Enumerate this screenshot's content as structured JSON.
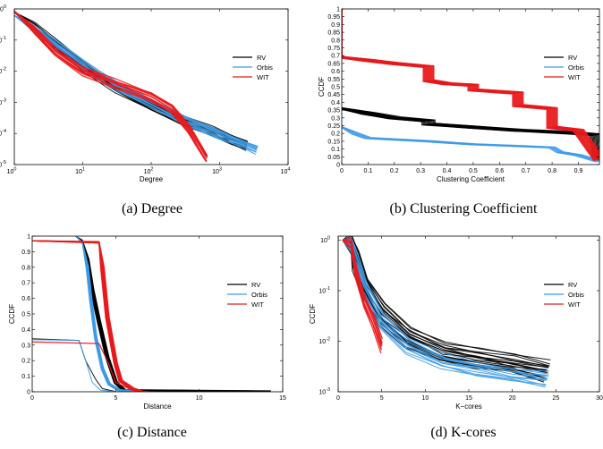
{
  "chart_data": [
    {
      "id": "a",
      "type": "line",
      "caption": "(a)  Degree",
      "xlabel": "Degree",
      "ylabel": "CCDF",
      "xscale": "log",
      "yscale": "log",
      "xlim": [
        1,
        10000
      ],
      "ylim": [
        1e-05,
        1
      ],
      "xticks": [
        {
          "v": 1,
          "b": "10",
          "e": "0"
        },
        {
          "v": 10,
          "b": "10",
          "e": "1"
        },
        {
          "v": 100,
          "b": "10",
          "e": "2"
        },
        {
          "v": 1000,
          "b": "10",
          "e": "3"
        },
        {
          "v": 10000,
          "b": "10",
          "e": "4"
        }
      ],
      "yticks": [
        {
          "v": 1e-05,
          "b": "10",
          "e": "-5"
        },
        {
          "v": 0.0001,
          "b": "10",
          "e": "-4"
        },
        {
          "v": 0.001,
          "b": "10",
          "e": "-3"
        },
        {
          "v": 0.01,
          "b": "10",
          "e": "-2"
        },
        {
          "v": 0.1,
          "b": "10",
          "e": "-1"
        },
        {
          "v": 1,
          "b": "10",
          "e": "0"
        }
      ],
      "legend": {
        "position": "right",
        "entries": [
          "RV",
          "Orbis",
          "WIT"
        ]
      },
      "series": [
        {
          "name": "RV",
          "color": "#000000",
          "copies": 12,
          "jitter": 0.07,
          "spread": 0.4,
          "x": [
            1,
            2,
            5,
            10,
            30,
            100,
            300,
            800,
            1500,
            2500
          ],
          "y": [
            0.8,
            0.25,
            0.05,
            0.015,
            0.003,
            0.0008,
            0.00025,
            0.00012,
            6e-05,
            4e-05
          ]
        },
        {
          "name": "Orbis",
          "color": "#3c9be8",
          "copies": 12,
          "jitter": 0.06,
          "spread": 0.5,
          "x": [
            1,
            2,
            5,
            10,
            30,
            100,
            300,
            1000,
            2000,
            3500
          ],
          "y": [
            0.62,
            0.22,
            0.05,
            0.016,
            0.0035,
            0.0009,
            0.00028,
            9e-05,
            5e-05,
            3e-05
          ]
        },
        {
          "name": "WIT",
          "color": "#e8191c",
          "copies": 10,
          "jitter": 0.06,
          "spread": 0.25,
          "x": [
            1,
            2,
            4,
            10,
            30,
            100,
            200,
            350,
            500,
            650
          ],
          "y": [
            0.85,
            0.2,
            0.04,
            0.01,
            0.004,
            0.0015,
            0.0006,
            0.00015,
            4e-05,
            1.5e-05
          ]
        }
      ]
    },
    {
      "id": "b",
      "type": "line",
      "caption": "(b)  Clustering Coefficient",
      "xlabel": "Clustering Coefficient",
      "ylabel": "CCDF",
      "xscale": "linear",
      "yscale": "linear",
      "xlim": [
        0,
        0.98
      ],
      "ylim": [
        0,
        1
      ],
      "xticks": [
        {
          "v": 0,
          "t": "0"
        },
        {
          "v": 0.1,
          "t": "0.1"
        },
        {
          "v": 0.2,
          "t": "0.2"
        },
        {
          "v": 0.3,
          "t": "0.3"
        },
        {
          "v": 0.4,
          "t": "0.4"
        },
        {
          "v": 0.5,
          "t": "0.5"
        },
        {
          "v": 0.6,
          "t": "0.6"
        },
        {
          "v": 0.7,
          "t": "0.7"
        },
        {
          "v": 0.8,
          "t": "0.8"
        },
        {
          "v": 0.9,
          "t": "0.9"
        }
      ],
      "yticks": [
        {
          "v": 0,
          "t": "0"
        },
        {
          "v": 0.05,
          "t": "0.05"
        },
        {
          "v": 0.1,
          "t": "0.1"
        },
        {
          "v": 0.15,
          "t": "0.15"
        },
        {
          "v": 0.2,
          "t": "0.2"
        },
        {
          "v": 0.25,
          "t": "0.25"
        },
        {
          "v": 0.3,
          "t": "0.3"
        },
        {
          "v": 0.35,
          "t": "0.35"
        },
        {
          "v": 0.4,
          "t": "0.4"
        },
        {
          "v": 0.45,
          "t": "0.45"
        },
        {
          "v": 0.5,
          "t": "0.5"
        },
        {
          "v": 0.55,
          "t": "0.55"
        },
        {
          "v": 0.6,
          "t": "0.6"
        },
        {
          "v": 0.65,
          "t": "0.65"
        },
        {
          "v": 0.7,
          "t": "0.7"
        },
        {
          "v": 0.75,
          "t": "0.75"
        },
        {
          "v": 0.8,
          "t": "0.8"
        },
        {
          "v": 0.85,
          "t": "0.85"
        },
        {
          "v": 0.9,
          "t": "0.9"
        },
        {
          "v": 0.95,
          "t": "0.95"
        },
        {
          "v": 1,
          "t": "1"
        }
      ],
      "legend": {
        "position": "right",
        "entries": [
          "RV",
          "Orbis",
          "WIT"
        ]
      },
      "series": [
        {
          "name": "RV",
          "color": "#000000",
          "copies": 14,
          "jitter": 0.03,
          "spread": 0.1,
          "x": [
            0,
            0,
            0.1,
            0.2,
            0.33,
            0.33,
            0.5,
            0.67,
            0.8,
            0.9,
            0.97,
            0.98
          ],
          "y": [
            1,
            0.36,
            0.33,
            0.3,
            0.28,
            0.26,
            0.24,
            0.22,
            0.21,
            0.2,
            0.19,
            0.03
          ]
        },
        {
          "name": "Orbis",
          "color": "#3c9be8",
          "copies": 6,
          "jitter": 0.02,
          "spread": 0.05,
          "x": [
            0,
            0,
            0.05,
            0.1,
            0.33,
            0.5,
            0.67,
            0.8,
            0.83,
            0.9,
            0.98
          ],
          "y": [
            1,
            0.24,
            0.2,
            0.17,
            0.15,
            0.13,
            0.12,
            0.11,
            0.08,
            0.06,
            0.02
          ]
        },
        {
          "name": "WIT",
          "color": "#e8191c",
          "copies": 14,
          "jitter": 0.03,
          "spread": 0.08,
          "x": [
            0,
            0,
            0.1,
            0.2,
            0.33,
            0.33,
            0.4,
            0.5,
            0.5,
            0.67,
            0.67,
            0.8,
            0.8,
            0.9,
            0.98
          ],
          "y": [
            1,
            0.69,
            0.67,
            0.65,
            0.63,
            0.54,
            0.52,
            0.51,
            0.48,
            0.46,
            0.38,
            0.36,
            0.24,
            0.22,
            0.03
          ]
        }
      ]
    },
    {
      "id": "c",
      "type": "line",
      "caption": "(c)  Distance",
      "xlabel": "Distance",
      "ylabel": "CCDF",
      "xscale": "linear",
      "yscale": "linear",
      "xlim": [
        0,
        15
      ],
      "ylim": [
        0,
        1
      ],
      "xticks": [
        {
          "v": 0,
          "t": "0"
        },
        {
          "v": 5,
          "t": "5"
        },
        {
          "v": 10,
          "t": "10"
        },
        {
          "v": 15,
          "t": "15"
        }
      ],
      "yticks": [
        {
          "v": 0,
          "t": "0"
        },
        {
          "v": 0.1,
          "t": "0.1"
        },
        {
          "v": 0.2,
          "t": "0.2"
        },
        {
          "v": 0.3,
          "t": "0.3"
        },
        {
          "v": 0.4,
          "t": "0.4"
        },
        {
          "v": 0.5,
          "t": "0.5"
        },
        {
          "v": 0.6,
          "t": "0.6"
        },
        {
          "v": 0.7,
          "t": "0.7"
        },
        {
          "v": 0.8,
          "t": "0.8"
        },
        {
          "v": 0.9,
          "t": "0.9"
        },
        {
          "v": 1,
          "t": "1"
        }
      ],
      "legend": {
        "position": "right",
        "entries": [
          "RV",
          "Orbis",
          "WIT"
        ]
      },
      "series": [
        {
          "name": "RV",
          "color": "#000000",
          "copies": 14,
          "jitter": 0.02,
          "spread": 0.4,
          "x": [
            2.6,
            3.0,
            3.3,
            3.6,
            4.0,
            4.5,
            5.0,
            5.5,
            14.2
          ],
          "y": [
            1,
            0.97,
            0.85,
            0.65,
            0.45,
            0.22,
            0.06,
            0.01,
            0.002
          ]
        },
        {
          "name": "RV",
          "color": "#000000",
          "copies": 1,
          "jitter": 0,
          "spread": 0,
          "x": [
            0,
            2.8,
            3.2,
            3.8,
            4.2,
            5
          ],
          "y": [
            0.34,
            0.33,
            0.2,
            0.08,
            0.02,
            0.002
          ]
        },
        {
          "name": "Orbis",
          "color": "#3c9be8",
          "copies": 12,
          "jitter": 0.02,
          "spread": 0.3,
          "x": [
            2.6,
            3.0,
            3.3,
            3.5,
            3.8,
            4.2,
            4.6,
            5.2,
            6.5
          ],
          "y": [
            1,
            0.96,
            0.8,
            0.6,
            0.35,
            0.15,
            0.05,
            0.01,
            0.001
          ]
        },
        {
          "name": "Orbis",
          "color": "#3c9be8",
          "copies": 1,
          "jitter": 0,
          "spread": 0,
          "x": [
            0,
            2.8,
            3.2,
            3.6,
            4.1,
            5.0
          ],
          "y": [
            0.335,
            0.33,
            0.2,
            0.06,
            0.01,
            0.001
          ]
        },
        {
          "name": "WIT",
          "color": "#e8191c",
          "copies": 12,
          "jitter": 0.02,
          "spread": 0.4,
          "x": [
            0,
            4.0,
            4.2,
            4.5,
            4.8,
            5.0,
            5.3,
            5.7,
            6.0,
            6.5
          ],
          "y": [
            0.97,
            0.96,
            0.8,
            0.48,
            0.3,
            0.18,
            0.07,
            0.04,
            0.02,
            0.001
          ]
        },
        {
          "name": "WIT",
          "color": "#e8191c",
          "copies": 1,
          "jitter": 0,
          "spread": 0,
          "x": [
            0,
            4.0,
            4.5,
            5.0,
            6.0,
            7.0
          ],
          "y": [
            0.32,
            0.31,
            0.2,
            0.06,
            0.01,
            0.001
          ]
        }
      ]
    },
    {
      "id": "d",
      "type": "line",
      "caption": "(d)  K-cores",
      "xlabel": "K−cores",
      "ylabel": "CCDF",
      "xscale": "linear",
      "yscale": "log",
      "xlim": [
        0,
        30
      ],
      "ylim": [
        0.001,
        1.2
      ],
      "xticks": [
        {
          "v": 0,
          "t": "0"
        },
        {
          "v": 5,
          "t": "5"
        },
        {
          "v": 10,
          "t": "10"
        },
        {
          "v": 15,
          "t": "15"
        },
        {
          "v": 20,
          "t": "20"
        },
        {
          "v": 25,
          "t": "25"
        },
        {
          "v": 30,
          "t": "30"
        }
      ],
      "yticks": [
        {
          "v": 0.001,
          "b": "10",
          "e": "-3"
        },
        {
          "v": 0.01,
          "b": "10",
          "e": "-2"
        },
        {
          "v": 0.1,
          "b": "10",
          "e": "-1"
        },
        {
          "v": 1,
          "b": "10",
          "e": "0"
        }
      ],
      "legend": {
        "position": "right",
        "entries": [
          "RV",
          "Orbis",
          "WIT"
        ]
      },
      "series": [
        {
          "name": "RV",
          "color": "#000000",
          "copies": 18,
          "jitter": 0.09,
          "spread": 1.5,
          "x": [
            0.5,
            1.5,
            2,
            3,
            5,
            8,
            12,
            16,
            20,
            24
          ],
          "y": [
            1,
            0.85,
            0.4,
            0.12,
            0.035,
            0.012,
            0.006,
            0.0045,
            0.0035,
            0.0025
          ]
        },
        {
          "name": "Orbis",
          "color": "#3c9be8",
          "copies": 12,
          "jitter": 0.07,
          "spread": 1.0,
          "x": [
            0.5,
            1.5,
            2,
            3,
            5,
            8,
            12,
            16,
            20,
            24
          ],
          "y": [
            1,
            0.85,
            0.4,
            0.11,
            0.025,
            0.008,
            0.004,
            0.0028,
            0.0022,
            0.0017
          ]
        },
        {
          "name": "WIT",
          "color": "#e8191c",
          "copies": 8,
          "jitter": 0.06,
          "spread": 0.3,
          "x": [
            0.5,
            1.5,
            2,
            3,
            4,
            5
          ],
          "y": [
            1,
            0.85,
            0.25,
            0.06,
            0.025,
            0.008
          ]
        }
      ]
    }
  ]
}
